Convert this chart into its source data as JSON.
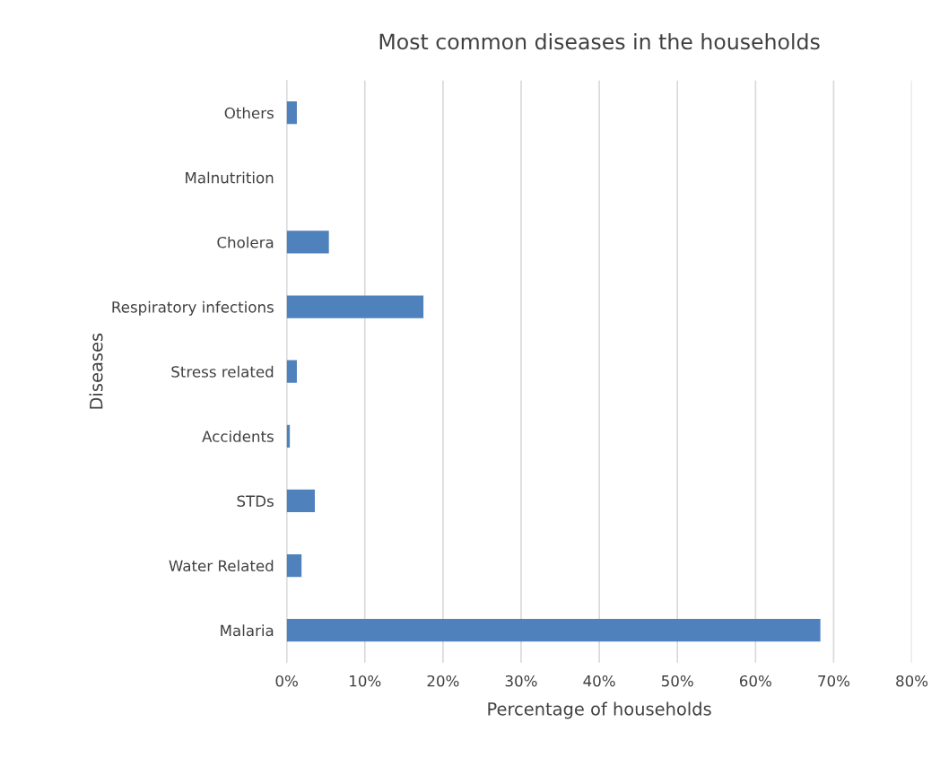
{
  "chart_data": {
    "type": "bar",
    "orientation": "horizontal",
    "title": "Most common diseases in the households",
    "xlabel": "Percentage of households",
    "ylabel": "Diseases",
    "categories": [
      "Others",
      "Malnutrition",
      "Cholera",
      "Respiratory infections",
      "Stress related",
      "Accidents",
      "STDs",
      "Water Related",
      "Malaria"
    ],
    "values": [
      1.3,
      0,
      5.4,
      17.5,
      1.3,
      0.4,
      3.6,
      1.9,
      68.3
    ],
    "color": "#4f81bd",
    "xlim": [
      0,
      80
    ],
    "xticks": [
      {
        "value": 0,
        "label": "0%"
      },
      {
        "value": 10,
        "label": "10%"
      },
      {
        "value": 20,
        "label": "20%"
      },
      {
        "value": 30,
        "label": "30%"
      },
      {
        "value": 40,
        "label": "40%"
      },
      {
        "value": 50,
        "label": "50%"
      },
      {
        "value": 60,
        "label": "60%"
      },
      {
        "value": 70,
        "label": "70%"
      },
      {
        "value": 80,
        "label": "80%"
      }
    ],
    "grid": "x",
    "legend": false
  }
}
